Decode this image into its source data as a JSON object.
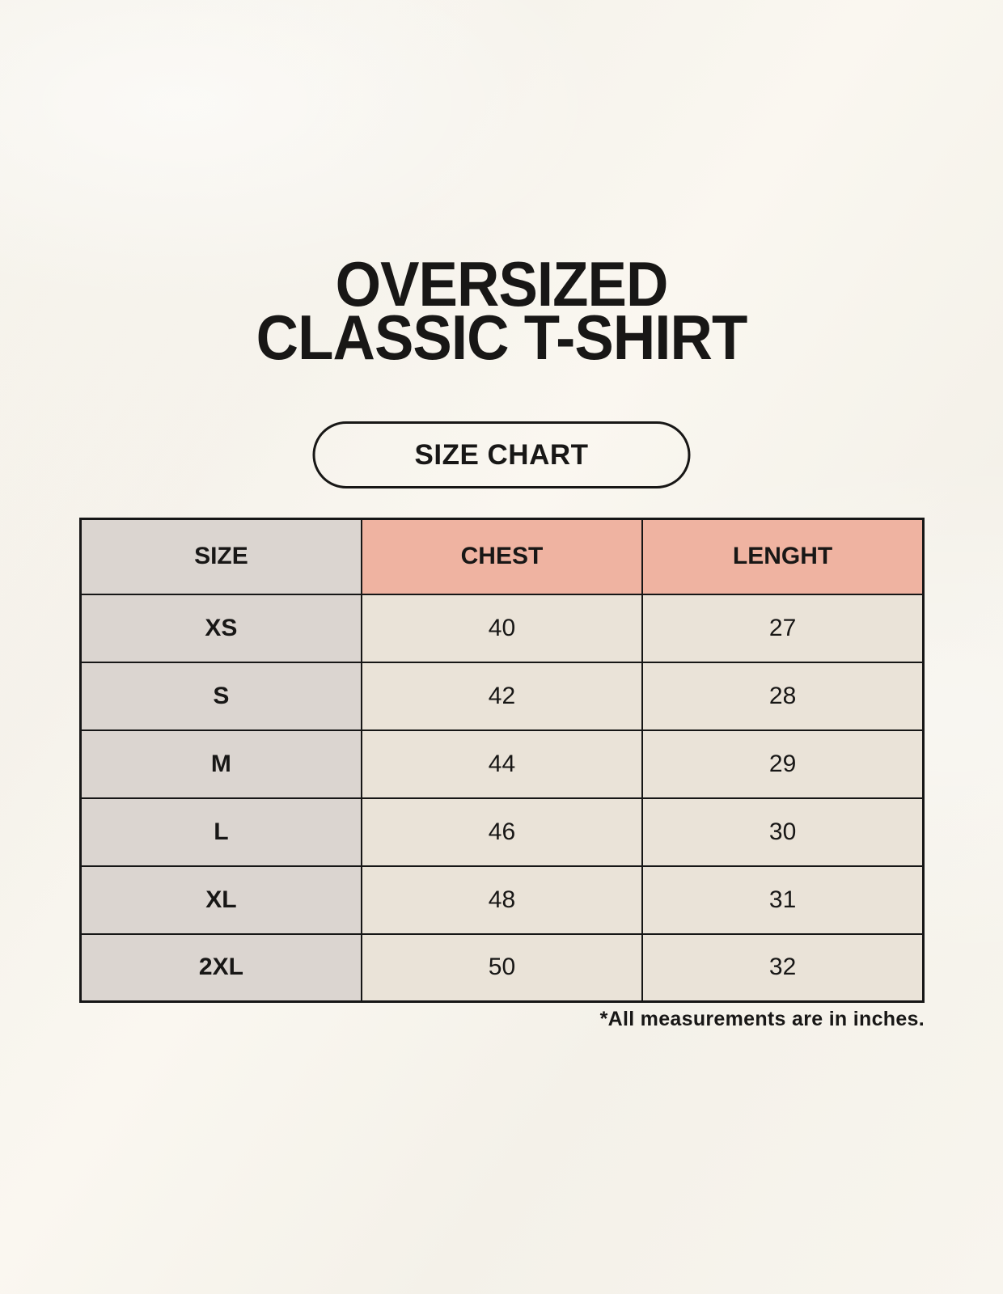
{
  "page": {
    "title_line1": "OVERSIZED",
    "title_line2": "CLASSIC T-SHIRT",
    "size_chart_button": "SIZE CHART",
    "footnote": "*All measurements are in inches."
  },
  "table": {
    "headers": [
      "SIZE",
      "CHEST",
      "LENGHT"
    ],
    "rows": [
      {
        "size": "XS",
        "chest": "40",
        "length": "27"
      },
      {
        "size": "S",
        "chest": "42",
        "length": "28"
      },
      {
        "size": "M",
        "chest": "44",
        "length": "29"
      },
      {
        "size": "L",
        "chest": "46",
        "length": "30"
      },
      {
        "size": "XL",
        "chest": "48",
        "length": "31"
      },
      {
        "size": "2XL",
        "chest": "50",
        "length": "32"
      }
    ],
    "units": "inches"
  },
  "colors": {
    "background": "#f7f4ed",
    "size_column_bg": "#dbd5d0",
    "measure_header_bg": "#efb3a1",
    "data_cell_bg": "#eae3d8",
    "border": "#161616",
    "text": "#181716"
  }
}
